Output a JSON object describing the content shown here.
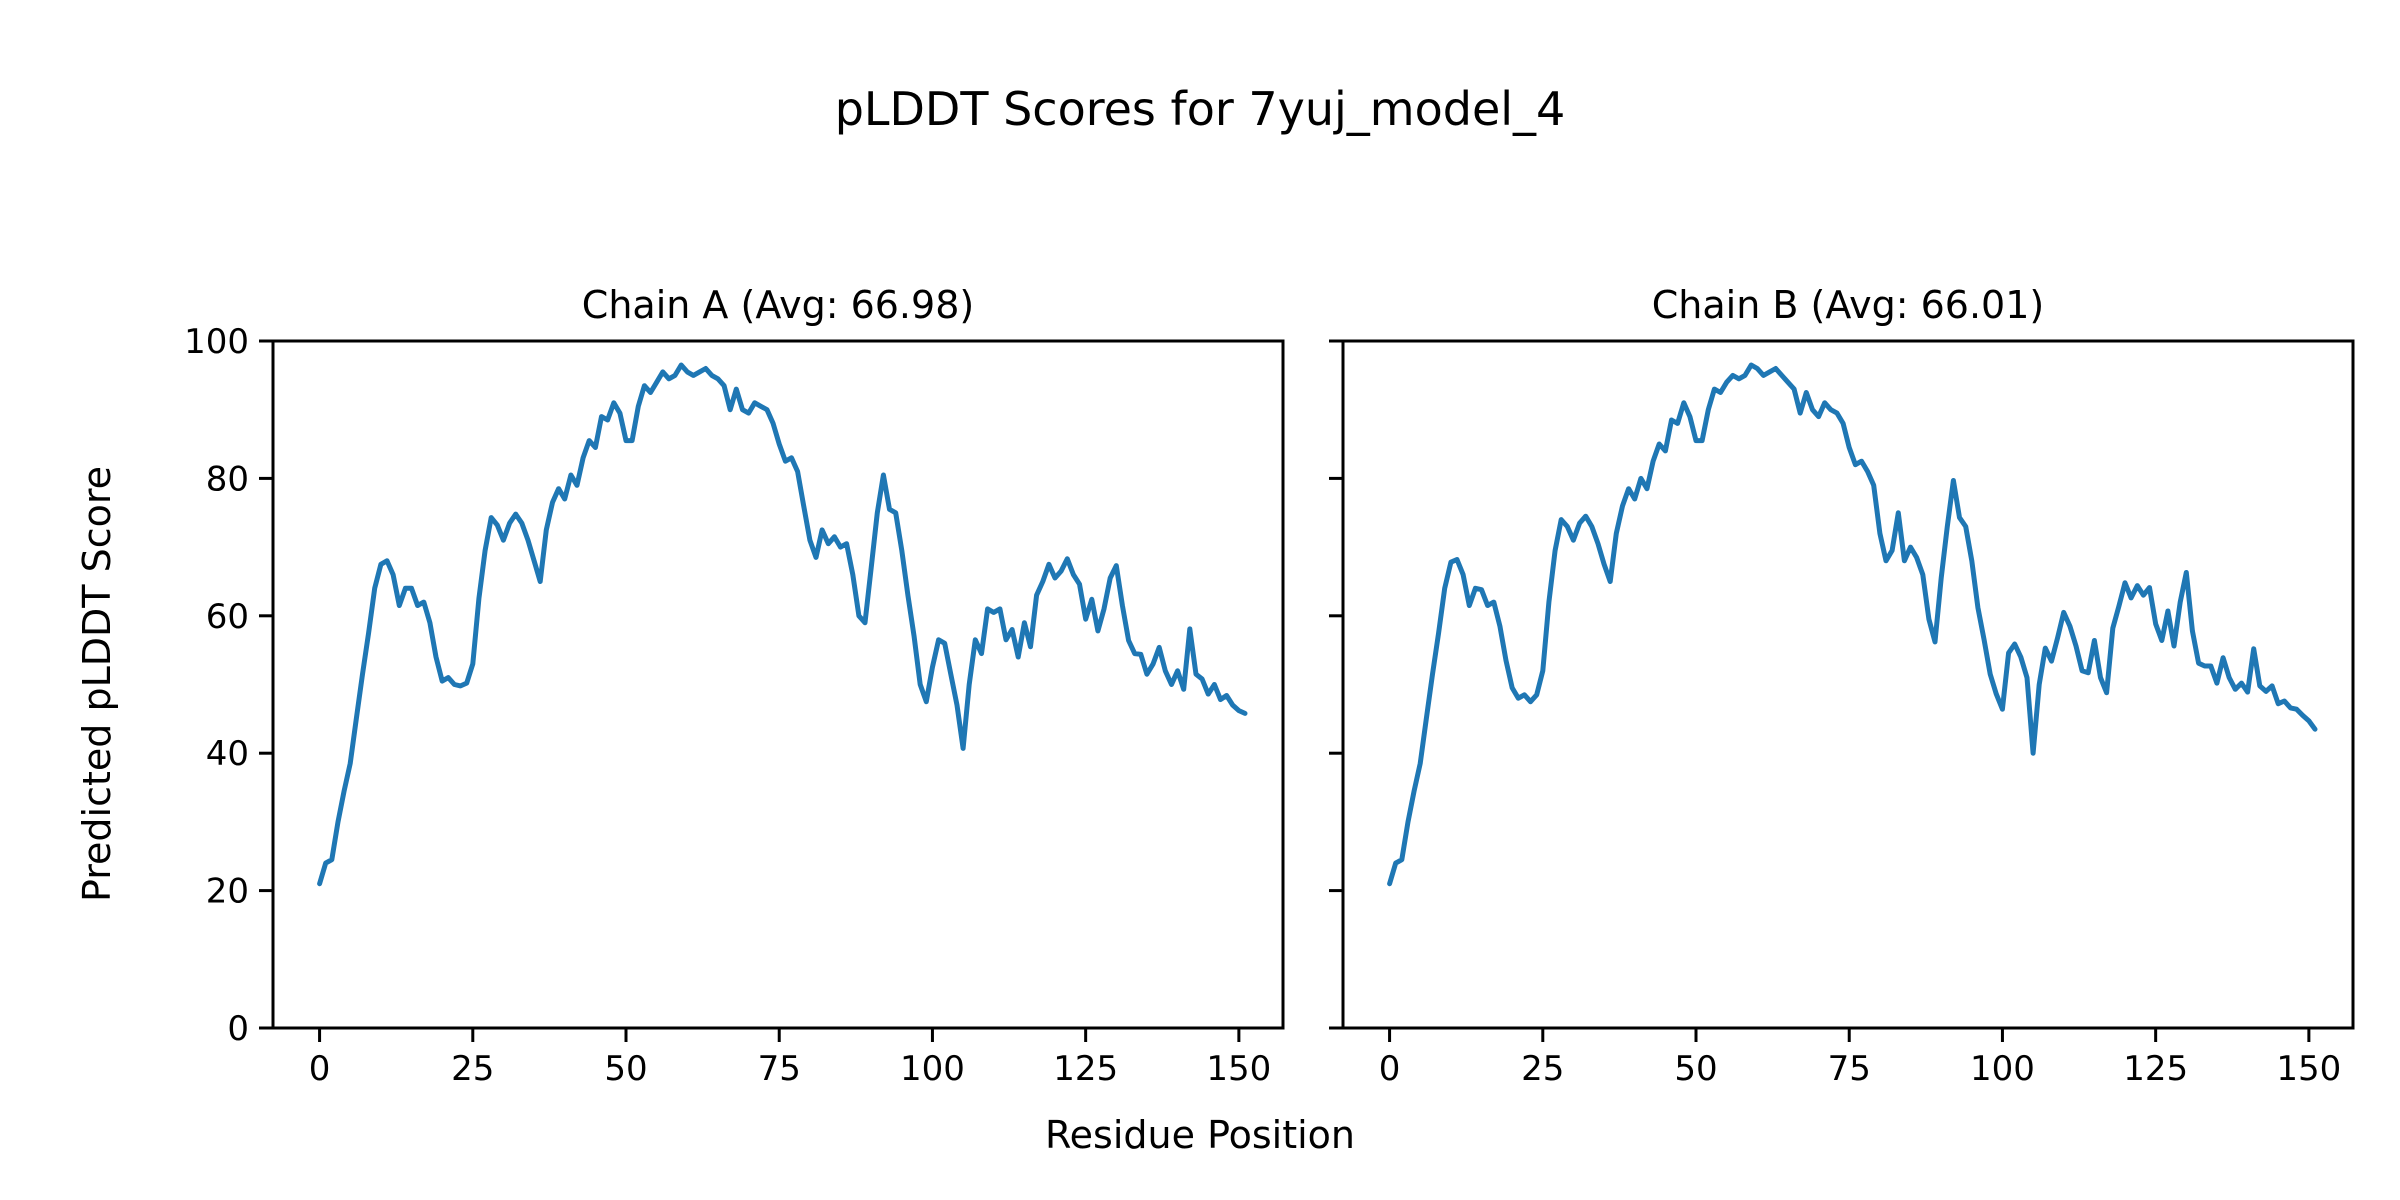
{
  "figure": {
    "suptitle": "pLDDT Scores for 7yuj_model_4",
    "xlabel": "Residue Position",
    "ylabel": "Predicted pLDDT Score",
    "background_color": "#ffffff",
    "text_color": "#000000",
    "line_color": "#1f77b4"
  },
  "chart_data": [
    {
      "type": "line",
      "title": "Chain A (Avg: 66.98)",
      "chain": "A",
      "avg": 66.98,
      "xlim": [
        -7.6,
        157.2
      ],
      "ylim": [
        0,
        100
      ],
      "xticks": [
        0,
        25,
        50,
        75,
        100,
        125,
        150
      ],
      "yticks": [
        0,
        20,
        40,
        60,
        80,
        100
      ],
      "show_ytick_labels": true,
      "grid": false,
      "series": [
        {
          "name": "Chain A pLDDT",
          "color": "#1f77b4",
          "x0": 0,
          "dx": 1,
          "values": [
            21.0,
            24.0,
            24.5,
            30.0,
            34.5,
            38.5,
            45.0,
            51.5,
            57.5,
            64.0,
            67.5,
            68.0,
            66.0,
            61.5,
            64.0,
            64.0,
            61.5,
            62.0,
            59.0,
            54.0,
            50.5,
            51.0,
            50.0,
            49.8,
            50.2,
            53.0,
            62.5,
            69.5,
            74.3,
            73.2,
            71.0,
            73.5,
            74.8,
            73.5,
            71.0,
            68.0,
            65.0,
            72.5,
            76.5,
            78.5,
            77.0,
            80.5,
            79.0,
            83.0,
            85.5,
            84.5,
            89.0,
            88.5,
            91.0,
            89.5,
            85.5,
            85.5,
            90.5,
            93.5,
            92.5,
            94.0,
            95.5,
            94.5,
            95.0,
            96.5,
            95.5,
            95.0,
            95.5,
            96.0,
            95.0,
            94.5,
            93.5,
            90.0,
            93.0,
            90.0,
            89.5,
            91.0,
            90.5,
            90.0,
            88.0,
            85.0,
            82.5,
            83.0,
            81.0,
            76.0,
            71.0,
            68.5,
            72.5,
            70.5,
            71.5,
            70.0,
            70.5,
            66.0,
            60.0,
            59.0,
            67.0,
            75.0,
            80.5,
            75.5,
            75.0,
            69.5,
            63.0,
            57.0,
            50.0,
            47.5,
            52.5,
            56.5,
            56.0,
            51.5,
            47.0,
            40.7,
            50.0,
            56.5,
            54.5,
            61.0,
            60.5,
            61.0,
            56.5,
            58.0,
            54.0,
            59.0,
            55.5,
            63.0,
            65.0,
            67.5,
            65.5,
            66.5,
            68.3,
            66.0,
            64.6,
            59.5,
            62.4,
            57.8,
            61.0,
            65.5,
            67.3,
            61.5,
            56.4,
            54.5,
            54.4,
            51.5,
            53.0,
            55.4,
            52.0,
            50.0,
            52.0,
            49.3,
            58.1,
            51.5,
            50.8,
            48.6,
            50.0,
            47.8,
            48.4,
            47.0,
            46.2,
            45.8
          ]
        }
      ]
    },
    {
      "type": "line",
      "title": "Chain B (Avg: 66.01)",
      "chain": "B",
      "avg": 66.01,
      "xlim": [
        -7.6,
        157.2
      ],
      "ylim": [
        0,
        100
      ],
      "xticks": [
        0,
        25,
        50,
        75,
        100,
        125,
        150
      ],
      "yticks": [
        0,
        20,
        40,
        60,
        80,
        100
      ],
      "show_ytick_labels": false,
      "grid": false,
      "series": [
        {
          "name": "Chain B pLDDT",
          "color": "#1f77b4",
          "x0": 0,
          "dx": 1,
          "values": [
            21.0,
            24.0,
            24.5,
            30.0,
            34.5,
            38.5,
            45.0,
            51.5,
            57.5,
            64.0,
            67.8,
            68.2,
            66.0,
            61.5,
            64.0,
            63.8,
            61.5,
            62.0,
            58.5,
            53.5,
            49.5,
            48.0,
            48.5,
            47.5,
            48.5,
            52.0,
            62.0,
            69.5,
            74.0,
            73.0,
            71.0,
            73.5,
            74.5,
            73.0,
            70.5,
            67.5,
            65.0,
            72.0,
            76.0,
            78.5,
            77.0,
            80.0,
            78.5,
            82.5,
            85.0,
            84.0,
            88.5,
            88.0,
            91.0,
            89.0,
            85.5,
            85.5,
            90.0,
            93.0,
            92.5,
            94.0,
            95.0,
            94.5,
            95.0,
            96.5,
            96.0,
            95.0,
            95.5,
            96.0,
            95.0,
            94.0,
            93.0,
            89.5,
            92.5,
            90.0,
            89.0,
            91.0,
            90.0,
            89.5,
            88.0,
            84.5,
            82.0,
            82.5,
            81.0,
            79.0,
            72.0,
            68.0,
            69.5,
            75.0,
            68.0,
            70.0,
            68.5,
            66.0,
            59.5,
            56.2,
            65.5,
            73.0,
            79.7,
            74.3,
            73.0,
            68.0,
            61.2,
            56.5,
            51.5,
            48.6,
            46.4,
            54.6,
            55.9,
            54.0,
            51.0,
            40.0,
            50.0,
            55.3,
            53.4,
            56.8,
            60.5,
            58.5,
            55.6,
            52.0,
            51.7,
            56.4,
            51.0,
            48.8,
            58.2,
            61.4,
            64.8,
            62.6,
            64.4,
            63.0,
            64.1,
            58.8,
            56.4,
            60.7,
            55.6,
            62.0,
            66.3,
            57.8,
            53.1,
            52.7,
            52.7,
            50.2,
            53.9,
            51.0,
            49.3,
            50.2,
            48.9,
            55.2,
            49.8,
            49.0,
            49.8,
            47.2,
            47.6,
            46.6,
            46.4,
            45.5,
            44.7,
            43.5
          ]
        }
      ]
    }
  ]
}
